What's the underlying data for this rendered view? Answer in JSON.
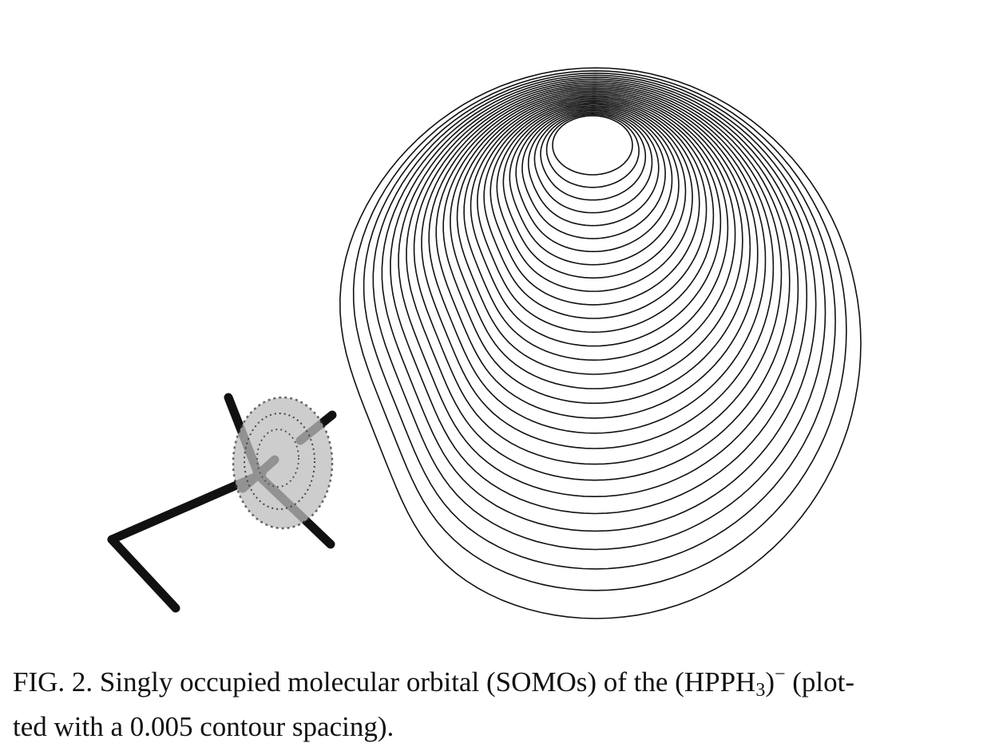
{
  "figure": {
    "caption": {
      "label": "FIG. 2.",
      "text_before": "Singly occupied molecular orbital (SOMOs) of the (HPPH",
      "subscript": "3",
      "after_subscript": ")",
      "superscript": "−",
      "text_after": "(plot-",
      "line2": "ted with a 0.005 contour spacing)."
    },
    "colors": {
      "ink": "#111111",
      "shading": "#bdbdbd",
      "background": "#ffffff"
    }
  }
}
